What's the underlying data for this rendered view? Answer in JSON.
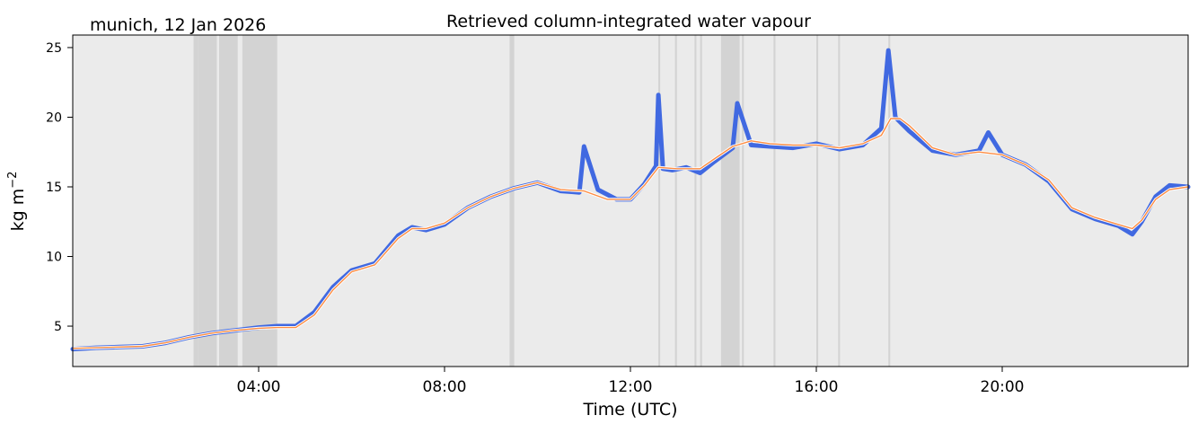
{
  "header": {
    "location_date": "munich, 12 Jan 2026",
    "title": "Retrieved column-integrated water vapour"
  },
  "chart_data": {
    "type": "line",
    "title": "Retrieved column-integrated water vapour",
    "xlabel": "Time (UTC)",
    "ylabel": "kg m",
    "ylabel_superscript": "−2",
    "x_unit": "hours UTC",
    "xlim": [
      0,
      24
    ],
    "ylim": [
      2.1,
      25.9
    ],
    "x_ticks": [
      {
        "value": 4,
        "label": "04:00"
      },
      {
        "value": 8,
        "label": "08:00"
      },
      {
        "value": 12,
        "label": "12:00"
      },
      {
        "value": 16,
        "label": "16:00"
      },
      {
        "value": 20,
        "label": "20:00"
      }
    ],
    "y_ticks": [
      {
        "value": 5,
        "label": "5"
      },
      {
        "value": 10,
        "label": "10"
      },
      {
        "value": 15,
        "label": "15"
      },
      {
        "value": 20,
        "label": "20"
      },
      {
        "value": 25,
        "label": "25"
      }
    ],
    "grid": false,
    "colors": {
      "plot_background": "#ebebeb",
      "flag_shading": "#d3d3d3",
      "raw_series": "#4169e1",
      "smooth_series": "#ff8c42"
    },
    "flagged_intervals": [
      [
        2.6,
        2.7
      ],
      [
        2.7,
        3.1
      ],
      [
        3.15,
        3.55
      ],
      [
        3.65,
        4.4
      ],
      [
        9.4,
        9.5
      ],
      [
        12.6,
        12.64
      ],
      [
        12.96,
        13.0
      ],
      [
        13.38,
        13.42
      ],
      [
        13.5,
        13.54
      ],
      [
        13.95,
        14.35
      ],
      [
        14.4,
        14.44
      ],
      [
        15.08,
        15.12
      ],
      [
        16.0,
        16.04
      ],
      [
        16.47,
        16.51
      ],
      [
        17.55,
        17.59
      ]
    ],
    "series": [
      {
        "kind": "raw",
        "x": [
          0.0,
          0.5,
          1.0,
          1.5,
          2.0,
          2.5,
          3.0,
          3.5,
          4.0,
          4.4,
          4.8,
          5.2,
          5.6,
          6.0,
          6.5,
          7.0,
          7.3,
          7.6,
          8.0,
          8.5,
          9.0,
          9.5,
          10.0,
          10.5,
          10.9,
          11.0,
          11.3,
          11.7,
          12.0,
          12.3,
          12.55,
          12.6,
          12.7,
          12.9,
          13.2,
          13.5,
          13.8,
          14.2,
          14.3,
          14.6,
          15.0,
          15.5,
          16.0,
          16.5,
          17.0,
          17.4,
          17.55,
          17.7,
          18.0,
          18.5,
          19.0,
          19.5,
          19.7,
          20.0,
          20.5,
          21.0,
          21.5,
          22.0,
          22.5,
          22.8,
          23.0,
          23.3,
          23.6,
          24.0
        ],
        "y": [
          3.35,
          3.45,
          3.5,
          3.55,
          3.8,
          4.2,
          4.5,
          4.7,
          4.9,
          5.0,
          5.0,
          6.0,
          7.8,
          9.0,
          9.5,
          11.5,
          12.1,
          11.9,
          12.3,
          13.5,
          14.3,
          14.9,
          15.3,
          14.7,
          14.6,
          17.9,
          14.8,
          14.1,
          14.1,
          15.2,
          16.5,
          21.6,
          16.3,
          16.2,
          16.4,
          16.0,
          16.8,
          17.8,
          21.0,
          18.0,
          17.9,
          17.8,
          18.1,
          17.7,
          18.0,
          19.2,
          24.8,
          20.0,
          19.0,
          17.6,
          17.3,
          17.6,
          18.9,
          17.3,
          16.6,
          15.4,
          13.4,
          12.7,
          12.2,
          11.6,
          12.5,
          14.3,
          15.1,
          15.0
        ]
      },
      {
        "kind": "smoothed",
        "x": [
          0.0,
          0.5,
          1.0,
          1.5,
          2.0,
          2.5,
          3.0,
          3.5,
          4.0,
          4.4,
          4.8,
          5.2,
          5.6,
          6.0,
          6.5,
          7.0,
          7.3,
          7.6,
          8.0,
          8.5,
          9.0,
          9.5,
          10.0,
          10.5,
          11.0,
          11.5,
          12.0,
          12.3,
          12.6,
          13.0,
          13.5,
          13.8,
          14.2,
          14.6,
          15.0,
          15.5,
          16.0,
          16.5,
          17.0,
          17.4,
          17.6,
          17.8,
          18.0,
          18.5,
          19.0,
          19.5,
          20.0,
          20.5,
          21.0,
          21.5,
          22.0,
          22.5,
          22.8,
          23.0,
          23.3,
          23.6,
          24.0
        ],
        "y": [
          3.4,
          3.45,
          3.5,
          3.55,
          3.8,
          4.2,
          4.5,
          4.7,
          4.85,
          4.9,
          4.9,
          5.8,
          7.6,
          8.9,
          9.4,
          11.3,
          12.0,
          12.0,
          12.4,
          13.5,
          14.3,
          14.9,
          15.3,
          14.8,
          14.7,
          14.1,
          14.1,
          15.1,
          16.4,
          16.3,
          16.3,
          17.0,
          17.9,
          18.3,
          18.1,
          18.0,
          18.0,
          17.8,
          18.1,
          18.7,
          19.9,
          19.9,
          19.4,
          17.8,
          17.3,
          17.5,
          17.3,
          16.6,
          15.5,
          13.5,
          12.8,
          12.3,
          12.0,
          12.6,
          14.1,
          14.8,
          15.0
        ]
      }
    ]
  }
}
